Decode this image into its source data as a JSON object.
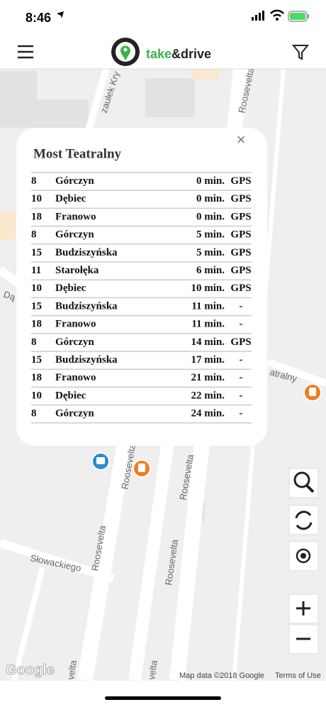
{
  "status_bar": {
    "time": "8:46"
  },
  "header": {
    "logo_take": "take",
    "logo_drive": "&drive"
  },
  "map": {
    "labels": [
      "zaułek Kry",
      "Roosevelta",
      "Dą",
      "atralny",
      "Roosevelta",
      "Roosevelta",
      "Słowackiego",
      "Roosevelta",
      "Roosevelta",
      "velta",
      "velta"
    ],
    "logo": "Google",
    "attribution": "Map data ©2018 Google",
    "terms": "Terms of Use"
  },
  "popup": {
    "title": "Most Teatralny",
    "close": "×",
    "rows": [
      [
        "8",
        "Górczyn",
        "0 min.",
        "GPS"
      ],
      [
        "10",
        "Dębiec",
        "0 min.",
        "GPS"
      ],
      [
        "18",
        "Franowo",
        "0 min.",
        "GPS"
      ],
      [
        "8",
        "Górczyn",
        "5 min.",
        "GPS"
      ],
      [
        "15",
        "Budziszyńska",
        "5 min.",
        "GPS"
      ],
      [
        "11",
        "Starołęka",
        "6 min.",
        "GPS"
      ],
      [
        "10",
        "Dębiec",
        "10 min.",
        "GPS"
      ],
      [
        "15",
        "Budziszyńska",
        "11 min.",
        "-"
      ],
      [
        "18",
        "Franowo",
        "11 min.",
        "-"
      ],
      [
        "8",
        "Górczyn",
        "14 min.",
        "GPS"
      ],
      [
        "15",
        "Budziszyńska",
        "17 min.",
        "-"
      ],
      [
        "18",
        "Franowo",
        "21 min.",
        "-"
      ],
      [
        "10",
        "Dębiec",
        "22 min.",
        "-"
      ],
      [
        "8",
        "Górczyn",
        "24 min.",
        "-"
      ]
    ]
  }
}
